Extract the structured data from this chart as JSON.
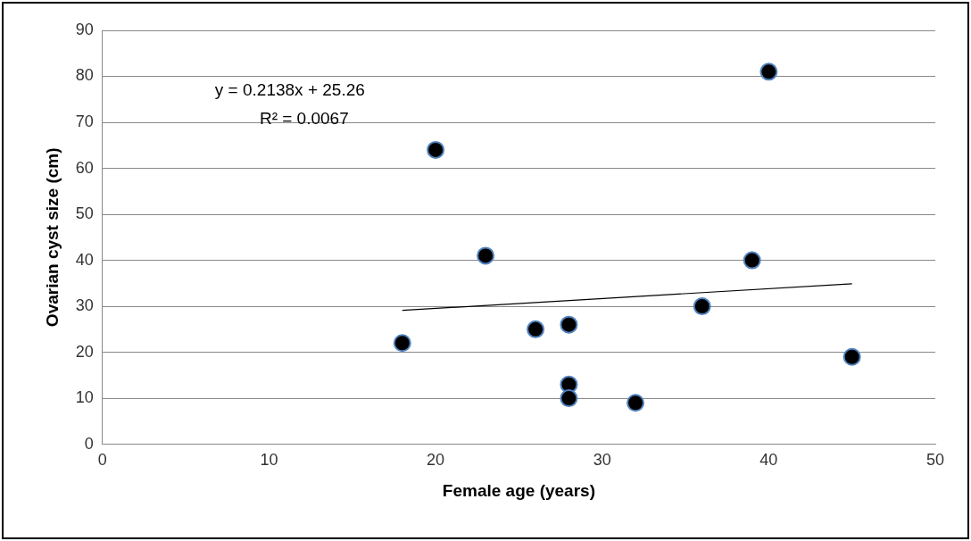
{
  "chart_data": {
    "type": "scatter",
    "xlabel": "Female age (years)",
    "ylabel": "Ovarian cyst size (cm)",
    "xlim": [
      0,
      50
    ],
    "xticks": [
      0,
      10,
      20,
      30,
      40,
      50
    ],
    "ylim": [
      0,
      90
    ],
    "yticks": [
      0,
      10,
      20,
      30,
      40,
      50,
      60,
      70,
      80,
      90
    ],
    "grid": "y",
    "marker": "circle",
    "annotations": [
      "y = 0.2138x + 25.26",
      "R² = 0.0067"
    ],
    "series": [
      {
        "type": "scatter",
        "color": "#000000",
        "x": [
          18,
          20,
          23,
          26,
          28,
          28,
          28,
          32,
          36,
          39,
          40,
          45
        ],
        "values": [
          22,
          64,
          41,
          25,
          26,
          13,
          10,
          9,
          30,
          40,
          81,
          19
        ]
      },
      {
        "type": "line",
        "marker": "none",
        "line_style": "solid",
        "color": "#000000",
        "x": [
          18,
          45
        ],
        "values": [
          29.1,
          34.9
        ]
      }
    ]
  }
}
